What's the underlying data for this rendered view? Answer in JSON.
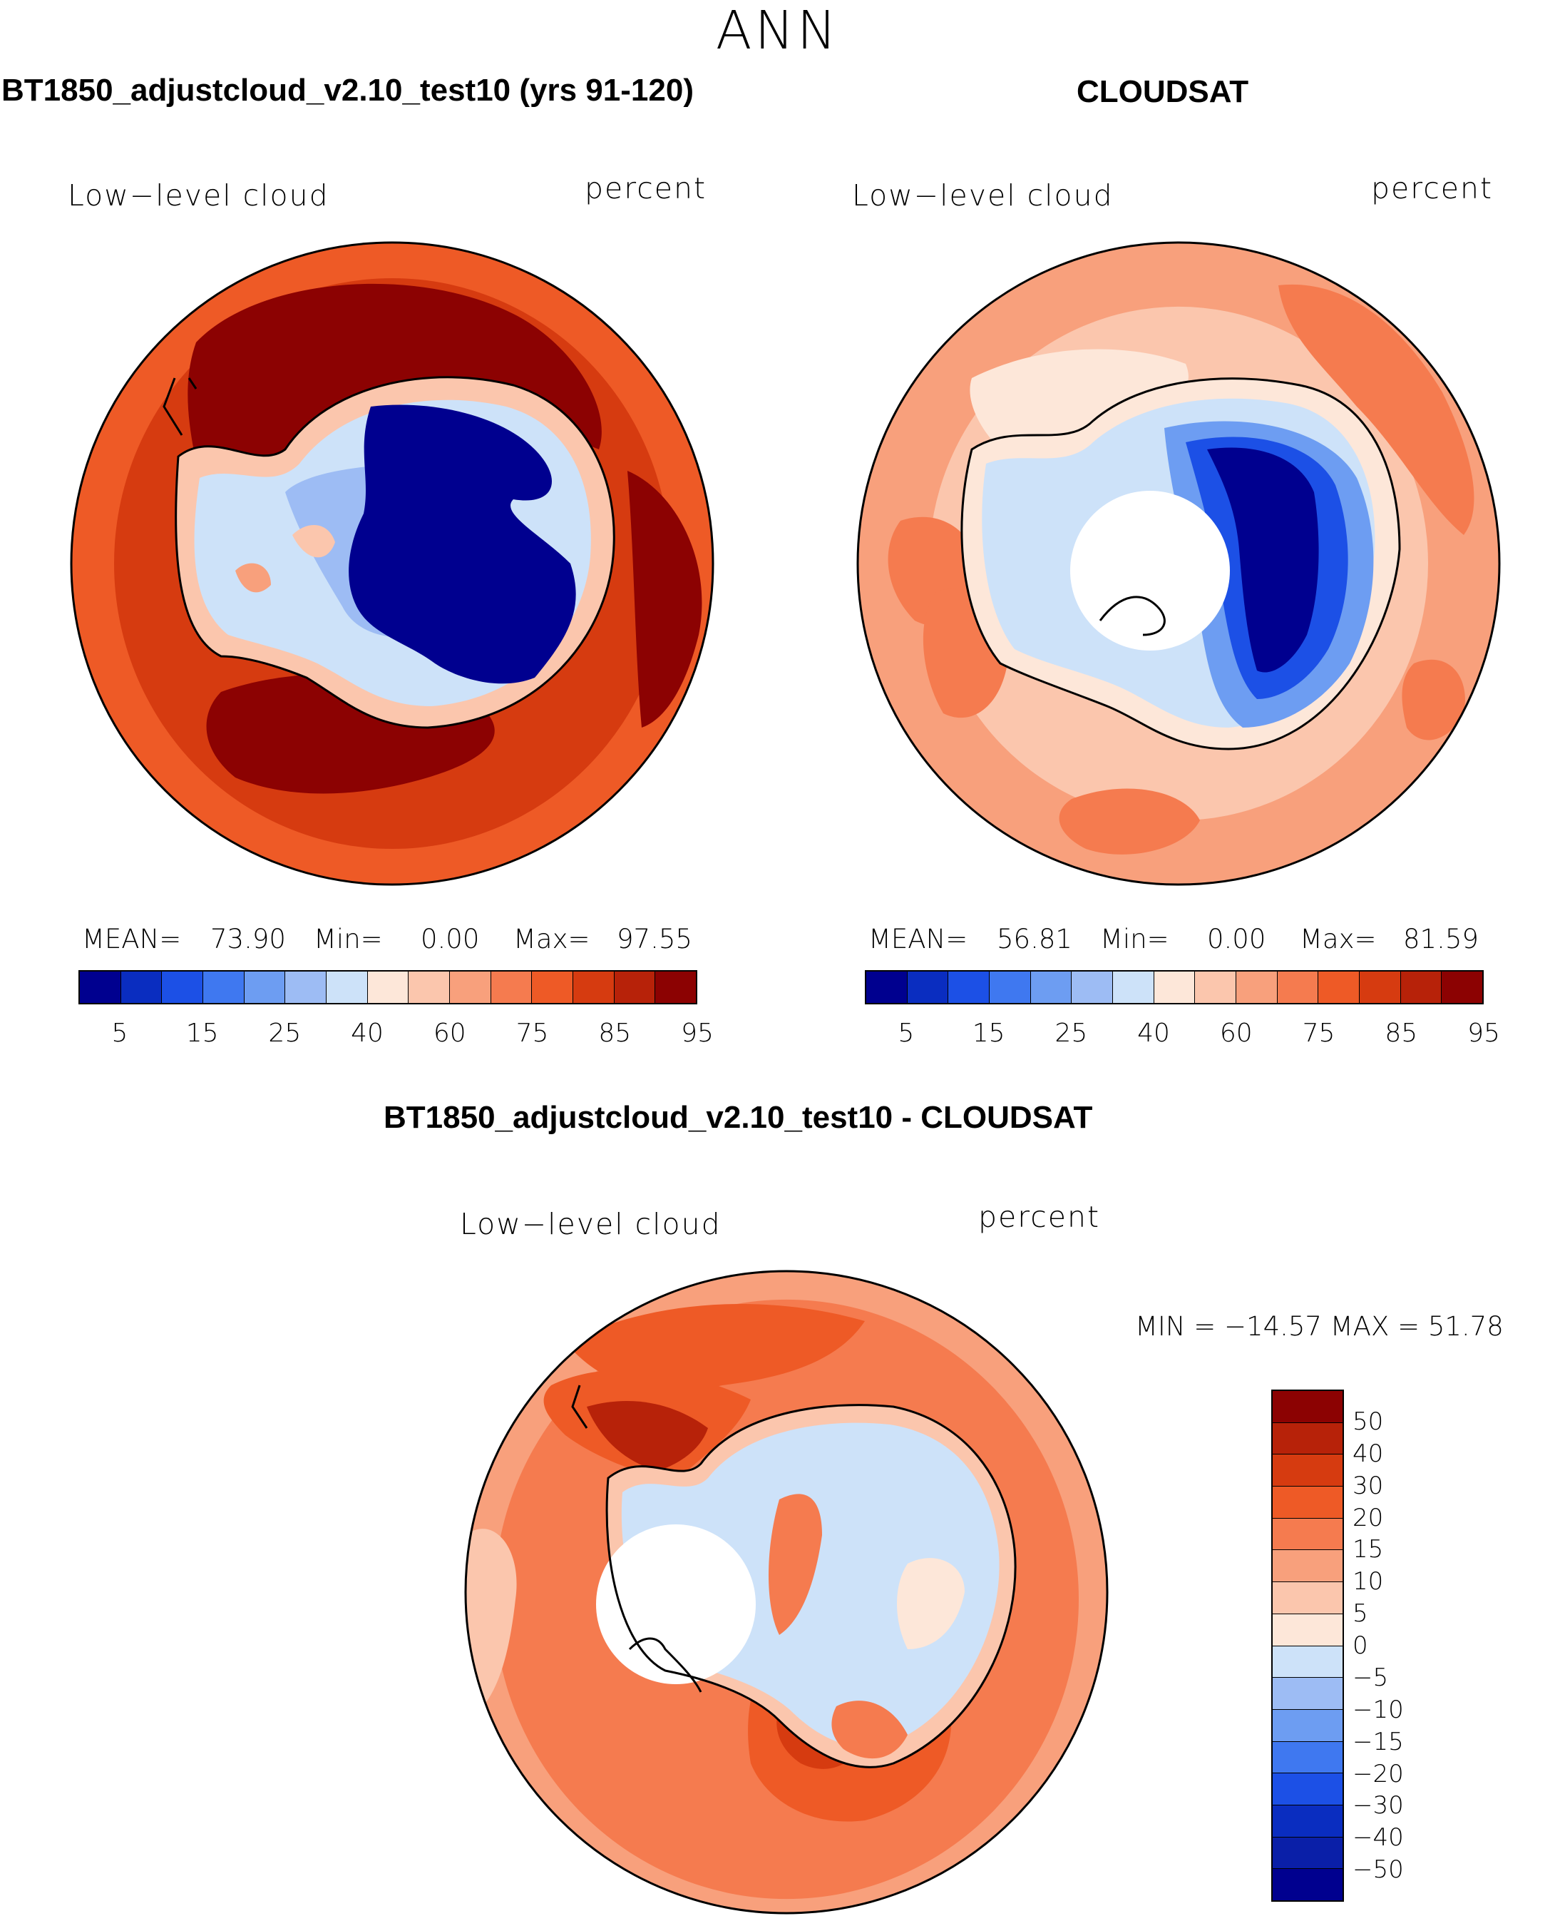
{
  "figure": {
    "season": "ANN"
  },
  "panels": [
    {
      "title": "BT1850_adjustcloud_v2.10_test10 (yrs 91-120)",
      "variable": "Low−level cloud",
      "units": "percent",
      "stats": {
        "mean_label": "MEAN=",
        "mean": "73.90",
        "min_label": "Min=",
        "min": "0.00",
        "max_label": "Max=",
        "max": "97.55"
      }
    },
    {
      "title": "CLOUDSAT",
      "variable": "Low−level cloud",
      "units": "percent",
      "stats": {
        "mean_label": "MEAN=",
        "mean": "56.81",
        "min_label": "Min=",
        "min": "0.00",
        "max_label": "Max=",
        "max": "81.59"
      }
    }
  ],
  "diff_panel": {
    "title": "BT1850_adjustcloud_v2.10_test10 - CLOUDSAT",
    "variable": "Low−level cloud",
    "units": "percent",
    "minmax_text": "MIN = −14.57  MAX =  51.78"
  },
  "colorbar_main": {
    "colors": [
      "#00008f",
      "#0a2dc0",
      "#1c50e6",
      "#3f78f0",
      "#6d9df2",
      "#9dbcf4",
      "#cde2f9",
      "#fde7d9",
      "#fbc6ad",
      "#f8a07c",
      "#f57b4f",
      "#ee5a26",
      "#d63b10",
      "#b72209",
      "#8c0202"
    ],
    "tick_labels": [
      "5",
      "15",
      "25",
      "40",
      "60",
      "75",
      "85",
      "95"
    ]
  },
  "colorbar_diff": {
    "colors": [
      "#8c0202",
      "#b72209",
      "#d63b10",
      "#ee5a26",
      "#f57b4f",
      "#f8a07c",
      "#fbc6ad",
      "#fde7d9",
      "#cde2f9",
      "#9dbcf4",
      "#6d9df2",
      "#3f78f0",
      "#1c50e6",
      "#0a2dc0",
      "#0a1fa8",
      "#00008f"
    ],
    "tick_labels": [
      "50",
      "40",
      "30",
      "20",
      "15",
      "10",
      "5",
      "0",
      "−5",
      "−10",
      "−15",
      "−20",
      "−30",
      "−40",
      "−50"
    ]
  }
}
